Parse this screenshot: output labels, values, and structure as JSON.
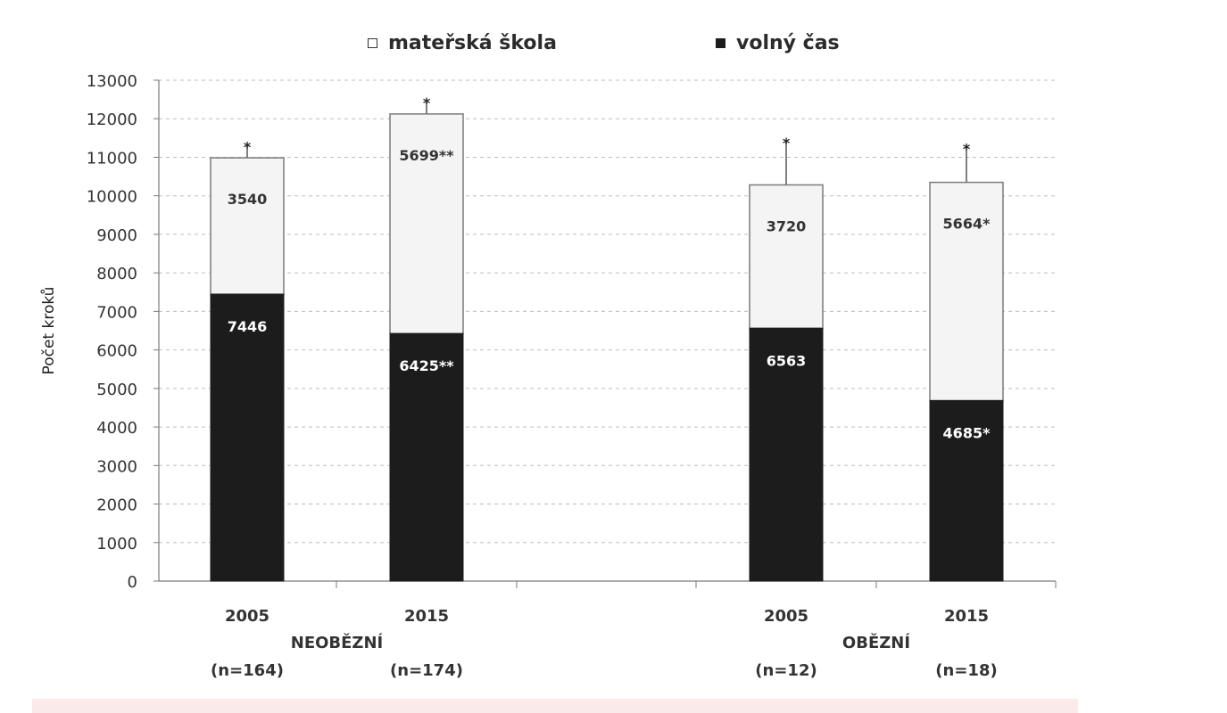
{
  "chart_data": {
    "type": "bar",
    "stacked": true,
    "ylabel": "Počet kroků",
    "ylim": [
      0,
      13000
    ],
    "yticks": [
      0,
      1000,
      2000,
      3000,
      4000,
      5000,
      6000,
      7000,
      8000,
      9000,
      10000,
      11000,
      12000,
      13000
    ],
    "grid": true,
    "legend_position": "top",
    "bars": [
      {
        "year": "2005",
        "n": "(n=164)",
        "values": {
          "volny_cas": 7446,
          "materska_skola": 3540
        },
        "labels": {
          "volny_cas": "7446",
          "materska_skola": "3540"
        },
        "error_top": 11300,
        "significance": "*"
      },
      {
        "year": "2015",
        "n": "(n=174)",
        "values": {
          "volny_cas": 6425,
          "materska_skola": 5699
        },
        "labels": {
          "volny_cas": "6425**",
          "materska_skola": "5699**"
        },
        "error_top": 12450,
        "significance": "*"
      },
      {
        "year": "2005",
        "n": "(n=12)",
        "values": {
          "volny_cas": 6563,
          "materska_skola": 3720
        },
        "labels": {
          "volny_cas": "6563",
          "materska_skola": "3720"
        },
        "error_top": 11400,
        "significance": "*"
      },
      {
        "year": "2015",
        "n": "(n=18)",
        "values": {
          "volny_cas": 4685,
          "materska_skola": 5664
        },
        "labels": {
          "volny_cas": "4685*",
          "materska_skola": "5664*"
        },
        "error_top": 11250,
        "significance": "*"
      }
    ],
    "groups": [
      {
        "label": "NEOBĚZNÍ",
        "bars": [
          0,
          1
        ]
      },
      {
        "label": "OBĚZNÍ",
        "bars": [
          2,
          3
        ]
      }
    ],
    "series": [
      {
        "key": "materska_skola",
        "name": "mateřská škola",
        "color": "#f4f4f4"
      },
      {
        "key": "volny_cas",
        "name": "volný čas",
        "color": "#1c1c1c"
      }
    ]
  },
  "legend": [
    {
      "name": "mateřská škola",
      "fill": "#ffffff",
      "border": "#333333"
    },
    {
      "name": "volný čas",
      "fill": "#1c1c1c",
      "border": "#1c1c1c"
    }
  ]
}
